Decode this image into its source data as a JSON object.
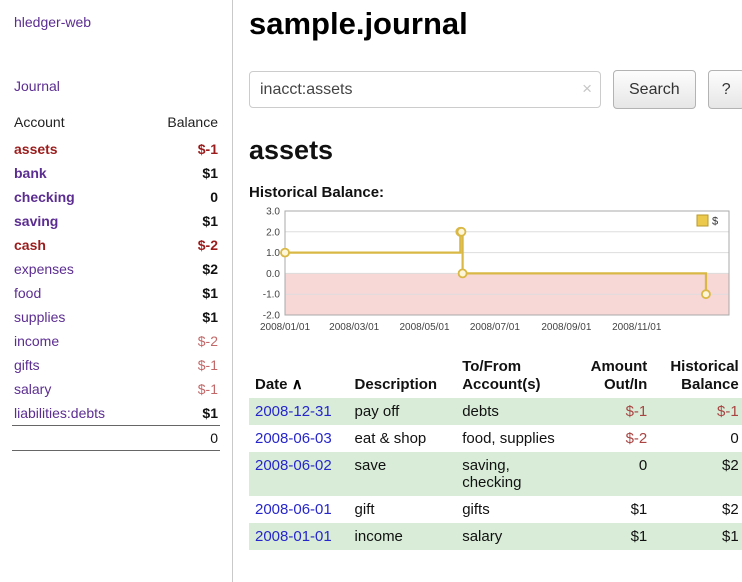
{
  "sidebar": {
    "app_title": "hledger-web",
    "journal_label": "Journal",
    "header": {
      "account": "Account",
      "balance": "Balance"
    },
    "accounts": [
      {
        "name": "assets",
        "balance": "$-1"
      },
      {
        "name": "bank",
        "balance": "$1"
      },
      {
        "name": "checking",
        "balance": "0"
      },
      {
        "name": "saving",
        "balance": "$1"
      },
      {
        "name": "cash",
        "balance": "$-2"
      },
      {
        "name": "expenses",
        "balance": "$2"
      },
      {
        "name": "food",
        "balance": "$1"
      },
      {
        "name": "supplies",
        "balance": "$1"
      },
      {
        "name": "income",
        "balance": "$-2"
      },
      {
        "name": "gifts",
        "balance": "$-1"
      },
      {
        "name": "salary",
        "balance": "$-1"
      },
      {
        "name": "liabilities:debts",
        "balance": "$1"
      }
    ],
    "total": "0"
  },
  "header": {
    "title": "sample.journal"
  },
  "search": {
    "value": "inacct:assets",
    "clear_icon": "×",
    "button": "Search",
    "help": "?"
  },
  "account_page": {
    "heading": "assets",
    "chart_title": "Historical Balance:"
  },
  "chart_data": {
    "type": "line",
    "step": "after",
    "title": "Historical Balance",
    "xlabel": "",
    "ylabel": "",
    "ylim": [
      -2,
      3
    ],
    "yticks": [
      3.0,
      2.0,
      1.0,
      0.0,
      -1.0,
      -2.0
    ],
    "xdomain": [
      "2008-01-01",
      "2009-01-20"
    ],
    "xticks": [
      {
        "date": "2008-01-01",
        "label": "2008/01/01"
      },
      {
        "date": "2008-03-01",
        "label": "2008/03/01"
      },
      {
        "date": "2008-05-01",
        "label": "2008/05/01"
      },
      {
        "date": "2008-07-01",
        "label": "2008/07/01"
      },
      {
        "date": "2008-09-01",
        "label": "2008/09/01"
      },
      {
        "date": "2008-11-01",
        "label": "2008/11/01"
      }
    ],
    "series": [
      {
        "name": "$",
        "points": [
          {
            "date": "2008-01-01",
            "value": 1
          },
          {
            "date": "2008-06-01",
            "value": 2
          },
          {
            "date": "2008-06-02",
            "value": 2
          },
          {
            "date": "2008-06-03",
            "value": 0
          },
          {
            "date": "2008-12-31",
            "value": -1
          }
        ]
      }
    ],
    "legend_position": "top-right",
    "grid": true,
    "line_color": "#d9b846",
    "negative_fill": "#f8d7d7"
  },
  "register": {
    "columns": {
      "date": "Date",
      "sort_indicator": "∧",
      "description": "Description",
      "accounts": "To/From Account(s)",
      "amount": "Amount Out/In",
      "balance": "Historical Balance"
    },
    "rows": [
      {
        "date": "2008-12-31",
        "description": "pay off",
        "accounts": "debts",
        "amount": "$-1",
        "balance": "$-1"
      },
      {
        "date": "2008-06-03",
        "description": "eat & shop",
        "accounts": "food, supplies",
        "amount": "$-2",
        "balance": "0"
      },
      {
        "date": "2008-06-02",
        "description": "save",
        "accounts": "saving, checking",
        "amount": "0",
        "balance": "$2"
      },
      {
        "date": "2008-06-01",
        "description": "gift",
        "accounts": "gifts",
        "amount": "$1",
        "balance": "$2"
      },
      {
        "date": "2008-01-01",
        "description": "income",
        "accounts": "salary",
        "amount": "$1",
        "balance": "$1"
      }
    ]
  },
  "colors": {
    "link_purple": "#5c2d91",
    "negative_red": "#9b1c1c",
    "muted_negative": "#c36868",
    "table_negative": "#a94442",
    "row_green": "#d8ecd8",
    "date_link_blue": "#2626cc",
    "chart_line": "#d9b846",
    "chart_negative_fill": "#f8d7d7"
  }
}
